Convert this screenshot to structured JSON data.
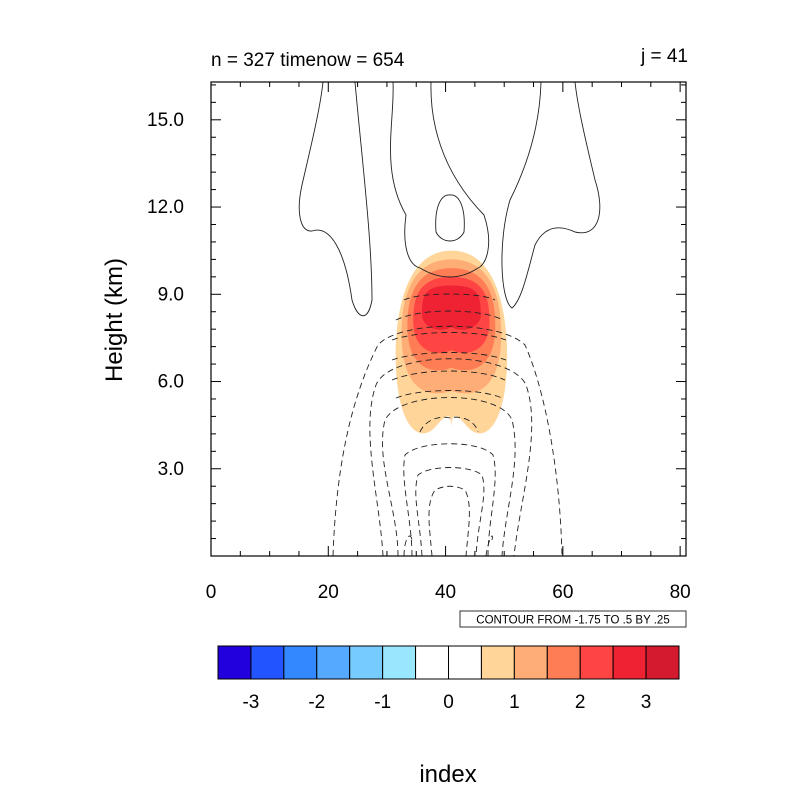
{
  "chart_data": {
    "type": "contour",
    "title_left": "n = 327 timenow = 654",
    "title_right": "j = 41",
    "ylabel": "Height (km)",
    "xlabel": "index",
    "xlim": [
      0,
      81
    ],
    "ylim": [
      0.0,
      16.3
    ],
    "x_ticks": [
      0,
      20,
      40,
      60,
      80
    ],
    "x_tick_labels": [
      "0",
      "20",
      "40",
      "60",
      "80"
    ],
    "y_ticks": [
      3.0,
      6.0,
      9.0,
      12.0,
      15.0
    ],
    "y_tick_labels": [
      "3.0",
      "6.0",
      "9.0",
      "12.0",
      "15.0"
    ],
    "contour_info": "CONTOUR FROM -1.75 TO .5 BY .25",
    "colorbar": {
      "colors": [
        "#2200dd",
        "#2255ff",
        "#3388ff",
        "#55aaff",
        "#77ccff",
        "#99e6ff",
        "#ffffff",
        "#ffffff",
        "#ffd599",
        "#ffad77",
        "#ff7d55",
        "#ff4444",
        "#ee2233",
        "#d41a2f"
      ],
      "tick_labels": [
        "-3",
        "-2",
        "-1",
        "0",
        "1",
        "2",
        "3"
      ]
    },
    "shading": [
      {
        "level": 1,
        "color": "#ffd599",
        "center_x": 41,
        "center_y": 7.4,
        "half_width_idx": 9.5,
        "top_km": 10.5,
        "bottom_km": 4.0
      },
      {
        "level": 1.5,
        "color": "#ffad77",
        "center_x": 41,
        "center_y": 7.9,
        "half_width_idx": 8.5,
        "top_km": 10.2,
        "bottom_km": 5.4
      },
      {
        "level": 2,
        "color": "#ff7d55",
        "center_x": 41,
        "center_y": 8.1,
        "half_width_idx": 7.5,
        "top_km": 9.9,
        "bottom_km": 6.2
      },
      {
        "level": 2.5,
        "color": "#ff4444",
        "center_x": 41,
        "center_y": 8.3,
        "half_width_idx": 6.5,
        "top_km": 9.6,
        "bottom_km": 6.8
      },
      {
        "level": 3,
        "color": "#ee2233",
        "center_x": 41,
        "center_y": 8.7,
        "half_width_idx": 5.0,
        "top_km": 9.3,
        "bottom_km": 7.6
      }
    ]
  }
}
